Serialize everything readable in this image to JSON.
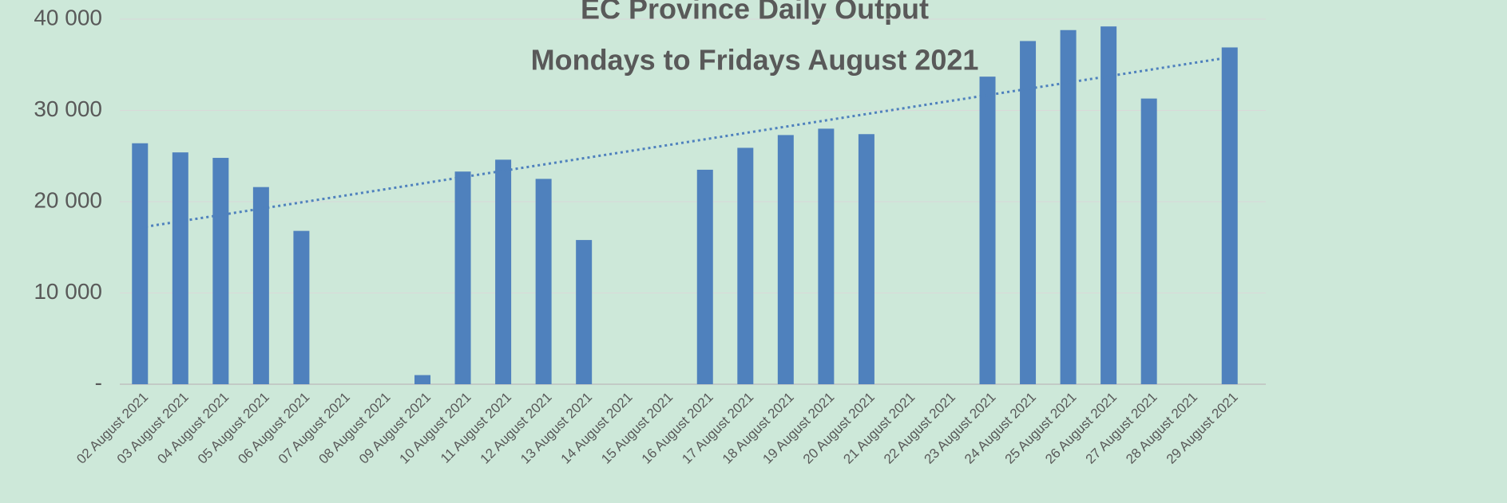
{
  "chart_data": {
    "type": "bar",
    "title": "EC Province Daily Output",
    "subtitle": "Mondays to Fridays August 2021",
    "categories": [
      "02 August 2021",
      "03 August 2021",
      "04 August 2021",
      "05 August 2021",
      "06 August 2021",
      "07 August 2021",
      "08 August 2021",
      "09 August 2021",
      "10 August 2021",
      "11 August 2021",
      "12 August 2021",
      "13 August 2021",
      "14 August 2021",
      "15 August 2021",
      "16 August 2021",
      "17 August 2021",
      "18 August 2021",
      "19 August 2021",
      "20 August 2021",
      "21 August 2021",
      "22 August 2021",
      "23 August 2021",
      "24 August 2021",
      "25 August 2021",
      "26 August 2021",
      "27 August 2021",
      "28 August 2021",
      "29 August 2021"
    ],
    "values": [
      26400,
      25400,
      24800,
      21600,
      16800,
      null,
      null,
      1000,
      23300,
      24600,
      22500,
      15800,
      null,
      null,
      23500,
      25900,
      27300,
      28000,
      27400,
      null,
      null,
      33700,
      37600,
      38800,
      39200,
      31300,
      null,
      36900
    ],
    "color": "#4f81bd",
    "trendline": true,
    "ylim": [
      0,
      40000
    ],
    "yticks": [
      {
        "value": 0,
        "label": "-"
      },
      {
        "value": 10000,
        "label": "10 000"
      },
      {
        "value": 20000,
        "label": "20 000"
      },
      {
        "value": 30000,
        "label": "30 000"
      },
      {
        "value": 40000,
        "label": "40 000"
      }
    ],
    "grid": true
  }
}
